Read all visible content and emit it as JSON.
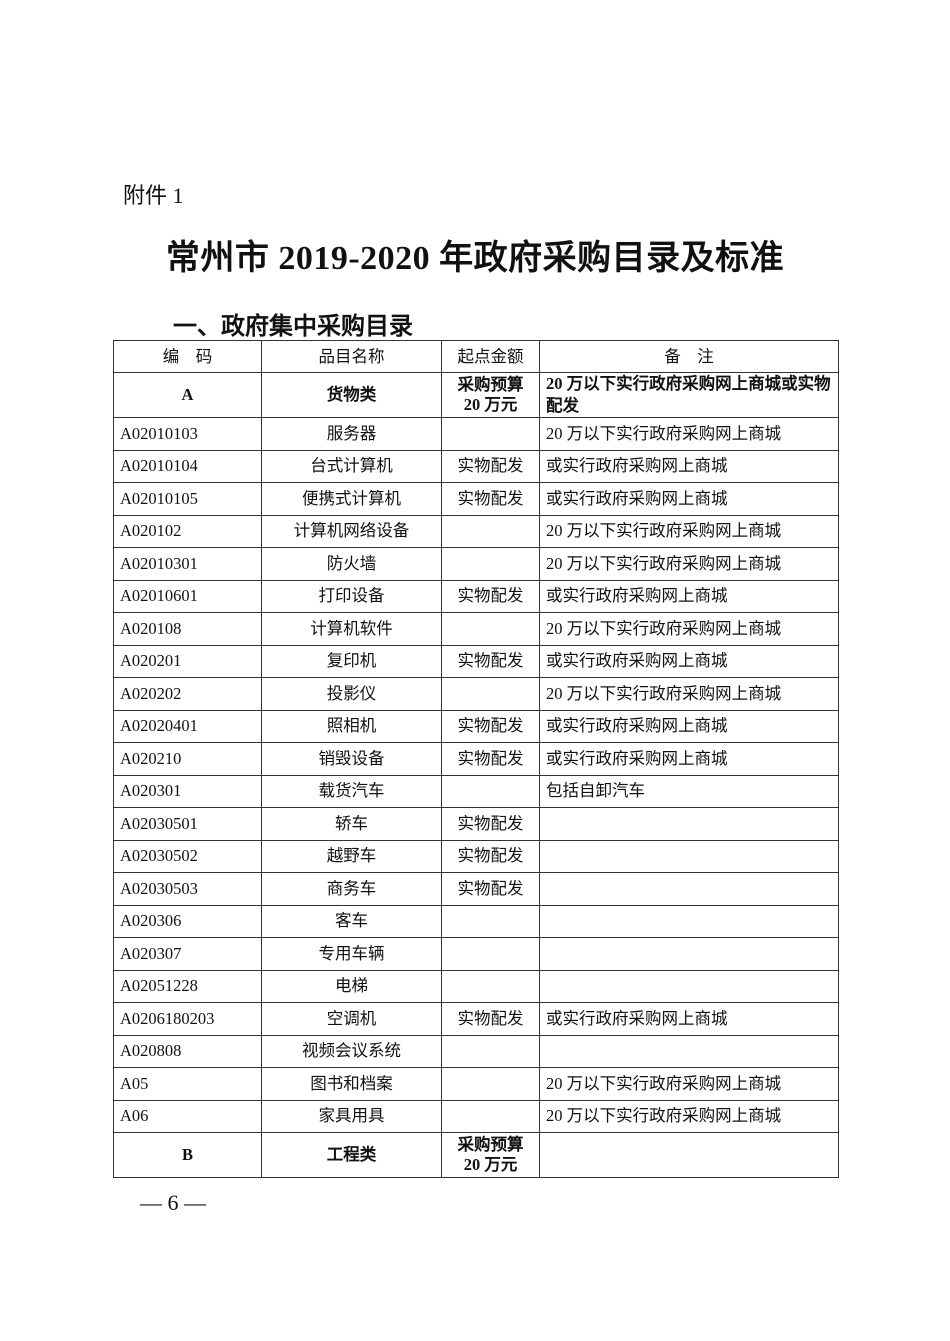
{
  "attachment_label": "附件 1",
  "title": "常州市 2019-2020 年政府采购目录及标准",
  "section_heading": "一、政府集中采购目录",
  "table": {
    "headers": [
      "编　码",
      "品目名称",
      "起点金额",
      "备　注"
    ],
    "rows": [
      {
        "code": "A",
        "name": "货物类",
        "amount": "采购预算 20 万元",
        "note": "20 万以下实行政府采购网上商城或实物配发",
        "category": true
      },
      {
        "code": "A02010103",
        "name": "服务器",
        "amount": "",
        "note": "20 万以下实行政府采购网上商城"
      },
      {
        "code": "A02010104",
        "name": "台式计算机",
        "amount": "实物配发",
        "note": "或实行政府采购网上商城"
      },
      {
        "code": "A02010105",
        "name": "便携式计算机",
        "amount": "实物配发",
        "note": "或实行政府采购网上商城"
      },
      {
        "code": "A020102",
        "name": "计算机网络设备",
        "amount": "",
        "note": "20 万以下实行政府采购网上商城"
      },
      {
        "code": "A02010301",
        "name": "防火墙",
        "amount": "",
        "note": "20 万以下实行政府采购网上商城"
      },
      {
        "code": "A02010601",
        "name": "打印设备",
        "amount": "实物配发",
        "note": "或实行政府采购网上商城"
      },
      {
        "code": "A020108",
        "name": "计算机软件",
        "amount": "",
        "note": "20 万以下实行政府采购网上商城"
      },
      {
        "code": "A020201",
        "name": "复印机",
        "amount": "实物配发",
        "note": "或实行政府采购网上商城"
      },
      {
        "code": "A020202",
        "name": "投影仪",
        "amount": "",
        "note": "20 万以下实行政府采购网上商城"
      },
      {
        "code": "A02020401",
        "name": "照相机",
        "amount": "实物配发",
        "note": "或实行政府采购网上商城"
      },
      {
        "code": "A020210",
        "name": "销毁设备",
        "amount": "实物配发",
        "note": "或实行政府采购网上商城"
      },
      {
        "code": "A020301",
        "name": "载货汽车",
        "amount": "",
        "note": "包括自卸汽车"
      },
      {
        "code": "A02030501",
        "name": "轿车",
        "amount": "实物配发",
        "note": ""
      },
      {
        "code": "A02030502",
        "name": "越野车",
        "amount": "实物配发",
        "note": ""
      },
      {
        "code": "A02030503",
        "name": "商务车",
        "amount": "实物配发",
        "note": ""
      },
      {
        "code": "A020306",
        "name": "客车",
        "amount": "",
        "note": ""
      },
      {
        "code": "A020307",
        "name": "专用车辆",
        "amount": "",
        "note": ""
      },
      {
        "code": "A02051228",
        "name": "电梯",
        "amount": "",
        "note": ""
      },
      {
        "code": "A0206180203",
        "name": "空调机",
        "amount": "实物配发",
        "note": "或实行政府采购网上商城"
      },
      {
        "code": "A020808",
        "name": "视频会议系统",
        "amount": "",
        "note": ""
      },
      {
        "code": "A05",
        "name": "图书和档案",
        "amount": "",
        "note": "20 万以下实行政府采购网上商城"
      },
      {
        "code": "A06",
        "name": "家具用具",
        "amount": "",
        "note": "20 万以下实行政府采购网上商城"
      },
      {
        "code": "B",
        "name": "工程类",
        "amount": "采购预算 20 万元",
        "note": "",
        "category": true
      }
    ]
  },
  "page_number": "— 6 —"
}
